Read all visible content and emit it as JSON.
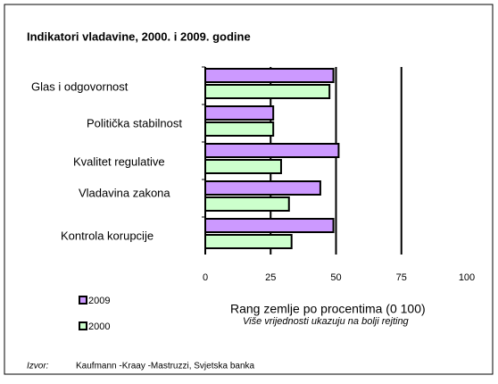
{
  "chart_data": {
    "type": "hbar",
    "title": "Indikatori vladavine, 2000. i 2009. godine",
    "categories": [
      "Glas i odgovornost",
      "Politička stabilnost",
      "Kvalitet regulative",
      "Vladavina zakona",
      "Kontrola korupcije"
    ],
    "series": [
      {
        "name": "2009",
        "color": "#cc99ff",
        "values": [
          49,
          26,
          51,
          44,
          49
        ]
      },
      {
        "name": "2000",
        "color": "#ccffcc",
        "values": [
          47.5,
          26,
          29,
          32,
          33
        ]
      }
    ],
    "xlim": [
      0,
      100
    ],
    "xticks": [
      0,
      25,
      50,
      75,
      100
    ],
    "grid": true,
    "x_label": "Rang zemlje po procentima (0 100)",
    "subtitle": "Više vrijednosti ukazuju na bolji rejting",
    "source_label": "Izvor:",
    "source": "Kaufmann -Kraay -Mastruzzi, Svjetska banka"
  }
}
